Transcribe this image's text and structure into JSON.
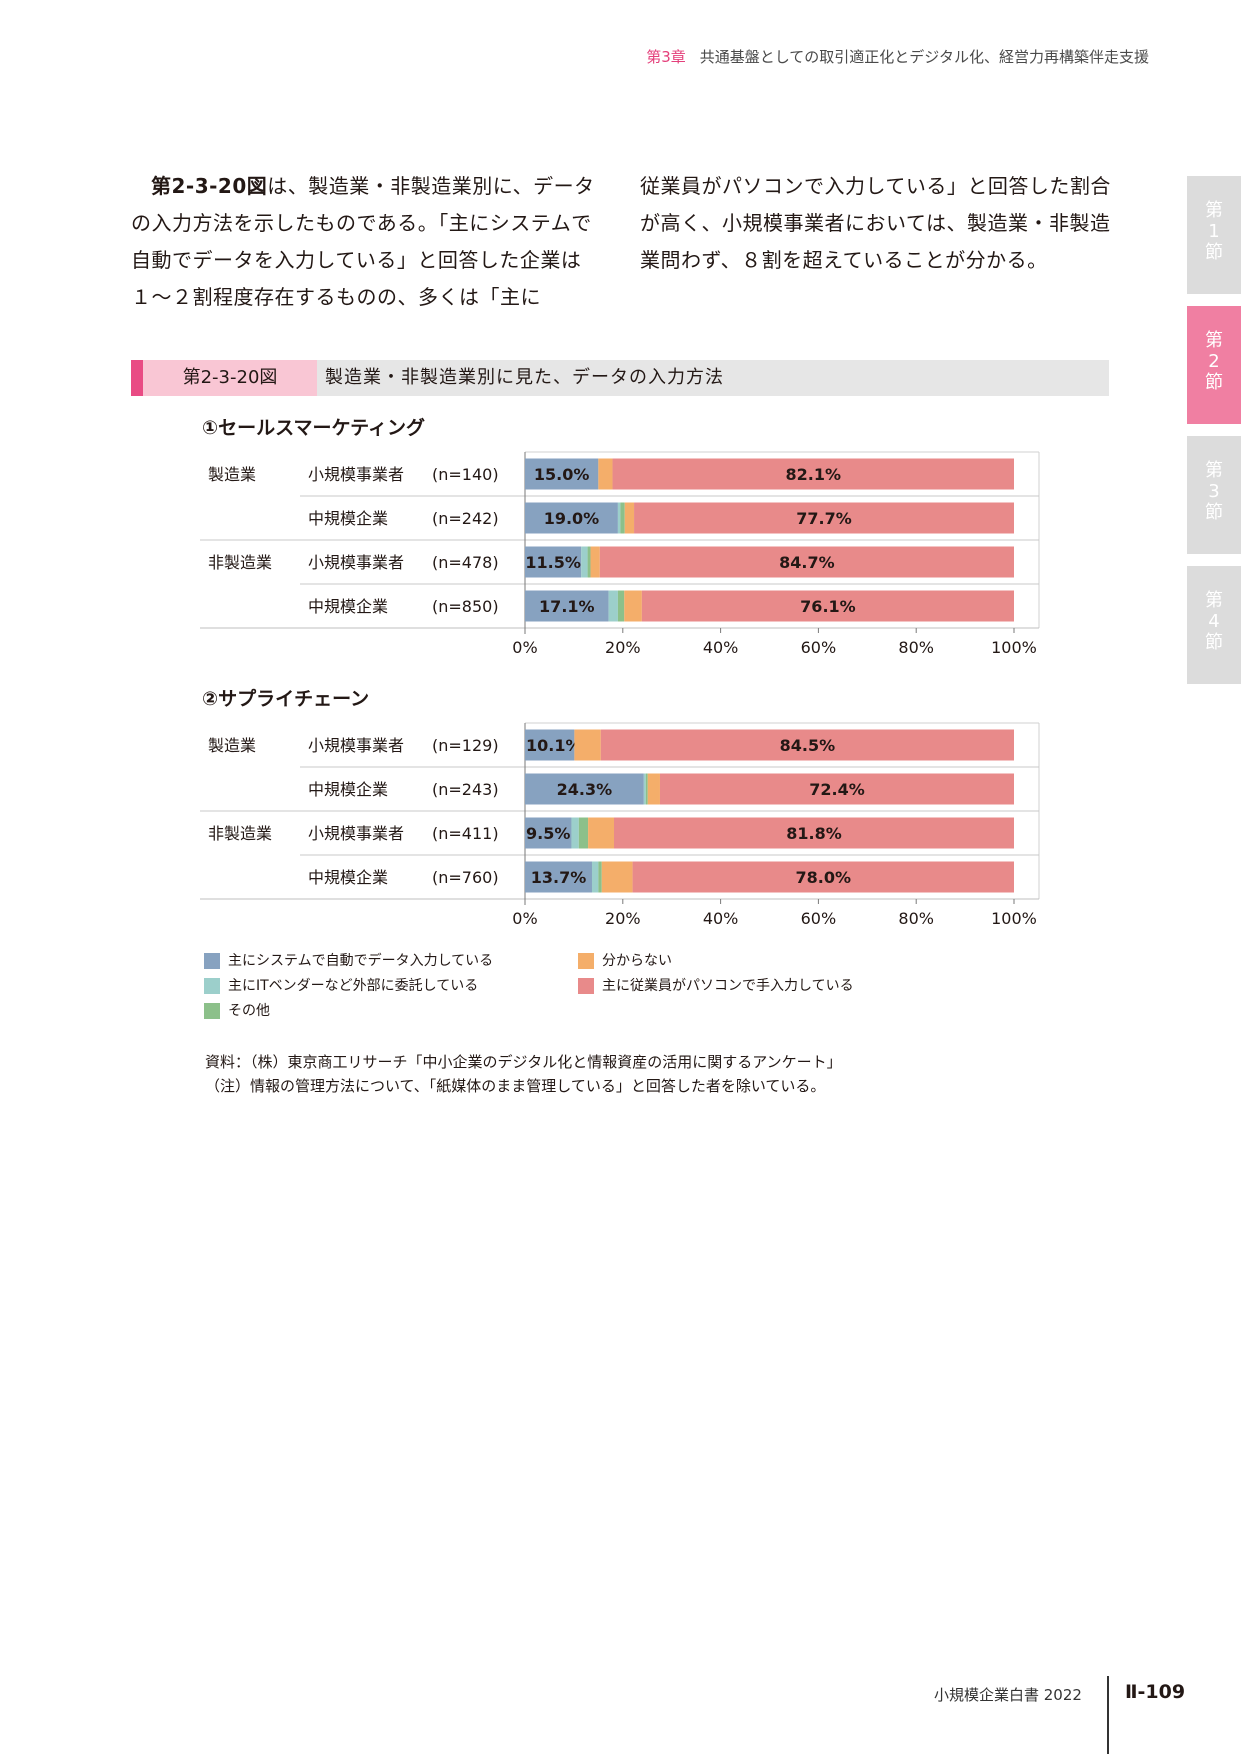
{
  "header": {
    "chapter": "第3章",
    "title": "共通基盤としての取引適正化とデジタル化、経営力再構築伴走支援"
  },
  "body": {
    "left_ref": "第2-3-20図",
    "left_text": "は、製造業・非製造業別に、データの入力方法を示したものである。「主にシステムで自動でデータを入力している」と回答した企業は１～２割程度存在するものの、多くは「主に",
    "right_text": "従業員がパソコンで入力している」と回答した割合が高く、小規模事業者においては、製造業・非製造業問わず、８割を超えていることが分かる。"
  },
  "side_tabs": [
    {
      "top": "第",
      "mid": "1",
      "bottom": "節",
      "active": false
    },
    {
      "top": "第",
      "mid": "2",
      "bottom": "節",
      "active": true
    },
    {
      "top": "第",
      "mid": "3",
      "bottom": "節",
      "active": false
    },
    {
      "top": "第",
      "mid": "4",
      "bottom": "節",
      "active": false
    }
  ],
  "figure": {
    "number": "第2-3-20図",
    "title": "製造業・非製造業別に見た、データの入力方法"
  },
  "colors": {
    "system": "#87a2c0",
    "it_vendor": "#9ccfcb",
    "other": "#8cc08a",
    "unknown": "#f4ae6a",
    "employee": "#e88a8a"
  },
  "chart_data": [
    {
      "type": "bar",
      "orientation": "horizontal-stacked",
      "title": "①セールスマーケティング",
      "groups": [
        "製造業",
        "",
        "非製造業",
        ""
      ],
      "categories": [
        "小規模事業者",
        "中規模企業",
        "小規模事業者",
        "中規模企業"
      ],
      "n_labels": [
        "(n=140)",
        "(n=242)",
        "(n=478)",
        "(n=850)"
      ],
      "xlim": [
        0,
        100
      ],
      "xticks": [
        "0%",
        "20%",
        "40%",
        "60%",
        "80%",
        "100%"
      ],
      "series": [
        {
          "name": "主にシステムで自動でデータ入力している",
          "color_key": "system",
          "values": [
            15.0,
            19.0,
            11.5,
            17.1
          ],
          "labels": [
            "15.0%",
            "19.0%",
            "11.5%",
            "17.1%"
          ]
        },
        {
          "name": "主にITベンダーなど外部に委託している",
          "color_key": "it_vendor",
          "values": [
            0.0,
            0.5,
            1.3,
            1.9
          ],
          "labels": [
            "",
            "",
            "",
            ""
          ]
        },
        {
          "name": "その他",
          "color_key": "other",
          "values": [
            0.0,
            0.9,
            0.6,
            1.3
          ],
          "labels": [
            "",
            "",
            "",
            ""
          ]
        },
        {
          "name": "分からない",
          "color_key": "unknown",
          "values": [
            2.9,
            1.9,
            1.9,
            3.6
          ],
          "labels": [
            "",
            "",
            "",
            ""
          ]
        },
        {
          "name": "主に従業員がパソコンで手入力している",
          "color_key": "employee",
          "values": [
            82.1,
            77.7,
            84.7,
            76.1
          ],
          "labels": [
            "82.1%",
            "77.7%",
            "84.7%",
            "76.1%"
          ]
        }
      ]
    },
    {
      "type": "bar",
      "orientation": "horizontal-stacked",
      "title": "②サプライチェーン",
      "groups": [
        "製造業",
        "",
        "非製造業",
        ""
      ],
      "categories": [
        "小規模事業者",
        "中規模企業",
        "小規模事業者",
        "中規模企業"
      ],
      "n_labels": [
        "(n=129)",
        "(n=243)",
        "(n=411)",
        "(n=760)"
      ],
      "xlim": [
        0,
        100
      ],
      "xticks": [
        "0%",
        "20%",
        "40%",
        "60%",
        "80%",
        "100%"
      ],
      "series": [
        {
          "name": "主にシステムで自動でデータ入力している",
          "color_key": "system",
          "values": [
            10.1,
            24.3,
            9.5,
            13.7
          ],
          "labels": [
            "10.1%",
            "24.3%",
            "9.5%",
            "13.7%"
          ]
        },
        {
          "name": "主にITベンダーなど外部に委託している",
          "color_key": "it_vendor",
          "values": [
            0.0,
            0.4,
            1.5,
            1.3
          ],
          "labels": [
            "",
            "",
            "",
            ""
          ]
        },
        {
          "name": "その他",
          "color_key": "other",
          "values": [
            0.0,
            0.4,
            1.9,
            0.7
          ],
          "labels": [
            "",
            "",
            "",
            ""
          ]
        },
        {
          "name": "分からない",
          "color_key": "unknown",
          "values": [
            5.4,
            2.5,
            5.3,
            6.3
          ],
          "labels": [
            "",
            "",
            "",
            ""
          ]
        },
        {
          "name": "主に従業員がパソコンで手入力している",
          "color_key": "employee",
          "values": [
            84.5,
            72.4,
            81.8,
            78.0
          ],
          "labels": [
            "84.5%",
            "72.4%",
            "81.8%",
            "78.0%"
          ]
        }
      ]
    }
  ],
  "legend": [
    {
      "label": "主にシステムで自動でデータ入力している",
      "color_key": "system"
    },
    {
      "label": "分からない",
      "color_key": "unknown"
    },
    {
      "label": "主にITベンダーなど外部に委託している",
      "color_key": "it_vendor"
    },
    {
      "label": "主に従業員がパソコンで手入力している",
      "color_key": "employee"
    },
    {
      "label": "その他",
      "color_key": "other"
    }
  ],
  "source": {
    "line1": "資料：（株）東京商工リサーチ「中小企業のデジタル化と情報資産の活用に関するアンケート」",
    "line2": "（注）情報の管理方法について、「紙媒体のまま管理している」と回答した者を除いている。"
  },
  "footer": {
    "book": "小規模企業白書 2022",
    "page": "Ⅱ-109"
  }
}
